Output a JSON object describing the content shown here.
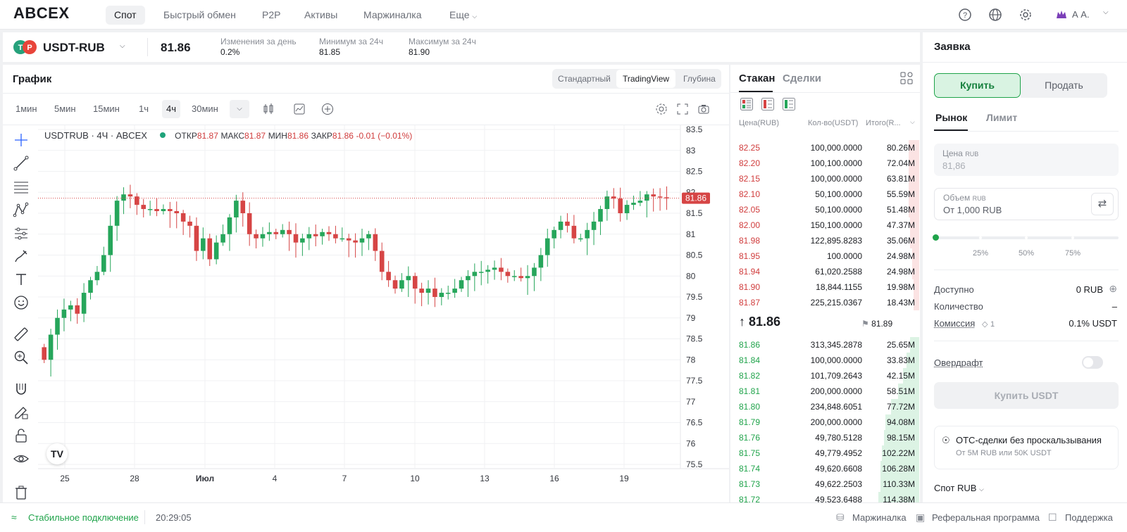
{
  "brand": "ABCEX",
  "nav": {
    "items": [
      {
        "label": "Спот",
        "active": true
      },
      {
        "label": "Быстрый обмен"
      },
      {
        "label": "P2P"
      },
      {
        "label": "Активы"
      },
      {
        "label": "Маржиналка"
      },
      {
        "label": "Еще"
      }
    ],
    "user": "А А."
  },
  "ticker": {
    "pair": "USDT-RUB",
    "price": "81.86",
    "change_label": "Изменения за день",
    "change_value": "0.2%",
    "min_label": "Минимум за 24ч",
    "min_value": "81.85",
    "max_label": "Максимум за 24ч",
    "max_value": "81.90"
  },
  "chart_panel": {
    "title": "График",
    "view_tabs": [
      {
        "label": "Стандартный"
      },
      {
        "label": "TradingView",
        "active": true
      },
      {
        "label": "Глубина"
      }
    ],
    "timeframes": [
      {
        "label": "1мин"
      },
      {
        "label": "5мин"
      },
      {
        "label": "15мин"
      },
      {
        "label": "1ч"
      },
      {
        "label": "4ч",
        "active": true
      },
      {
        "label": "30мин"
      }
    ],
    "legend": {
      "symbol": "USDTRUB · 4Ч · ABCEX",
      "open_label": "ОТКР",
      "open": "81.87",
      "high_label": "МАКС",
      "high": "81.87",
      "low_label": "МИН",
      "low": "81.86",
      "close_label": "ЗАКР",
      "close": "81.86",
      "change": "-0.01 (−0.01%)"
    },
    "last_price_tag": "81.86",
    "colors": {
      "up": "#26a65b",
      "down": "#d64545"
    }
  },
  "chart_data": {
    "type": "candlestick",
    "y_ticks": [
      "83.5",
      "83",
      "82.5",
      "82",
      "81.5",
      "81",
      "80.5",
      "80",
      "79.5",
      "79",
      "78.5",
      "78",
      "77.5",
      "77",
      "76.5",
      "76",
      "75.5"
    ],
    "x_ticks": [
      "25",
      "28",
      "Июл",
      "4",
      "7",
      "10",
      "13",
      "16",
      "19"
    ],
    "ylim": [
      75.5,
      83.5
    ],
    "last_price": 81.86,
    "close_path": [
      78.0,
      78.6,
      79.0,
      79.2,
      79.3,
      79.1,
      79.6,
      79.9,
      80.1,
      80.5,
      81.2,
      81.8,
      81.95,
      81.9,
      81.7,
      81.6,
      81.6,
      81.55,
      81.6,
      81.55,
      81.5,
      81.3,
      81.2,
      80.6,
      80.9,
      80.4,
      80.8,
      81.0,
      81.4,
      81.8,
      81.5,
      81.0,
      80.9,
      81.0,
      81.05,
      81.0,
      81.1,
      81.0,
      80.8,
      80.9,
      81.0,
      80.95,
      81.05,
      81.0,
      80.9,
      80.9,
      80.85,
      80.8,
      80.9,
      81.0,
      80.6,
      80.1,
      79.9,
      79.7,
      79.9,
      80.0,
      79.7,
      79.6,
      79.7,
      79.5,
      79.6,
      79.6,
      79.7,
      79.9,
      80.0,
      80.1,
      80.1,
      80.15,
      80.2,
      80.1,
      80.0,
      80.0,
      79.95,
      80.0,
      80.2,
      80.5,
      80.9,
      81.1,
      81.3,
      81.2,
      80.9,
      80.9,
      81.1,
      81.3,
      81.6,
      81.9,
      81.85,
      81.5,
      81.7,
      81.75,
      81.8,
      81.95,
      81.9,
      81.88,
      81.86
    ]
  },
  "orderbook": {
    "tabs": [
      {
        "label": "Стакан",
        "active": true
      },
      {
        "label": "Сделки"
      }
    ],
    "col_price": "Цена(RUB)",
    "col_qty": "Кол-во(USDT)",
    "col_total": "Итого(R...",
    "asks": [
      {
        "price": "82.25",
        "qty": "100,000.0000",
        "total": "80.26M",
        "depth": 0.06
      },
      {
        "price": "82.20",
        "qty": "100,100.0000",
        "total": "72.04M",
        "depth": 0.06
      },
      {
        "price": "82.15",
        "qty": "100,000.0000",
        "total": "63.81M",
        "depth": 0.06
      },
      {
        "price": "82.10",
        "qty": "50,100.0000",
        "total": "55.59M",
        "depth": 0.06
      },
      {
        "price": "82.05",
        "qty": "50,100.0000",
        "total": "51.48M",
        "depth": 0.06
      },
      {
        "price": "82.00",
        "qty": "150,100.0000",
        "total": "47.37M",
        "depth": 0.05
      },
      {
        "price": "81.98",
        "qty": "122,895.8283",
        "total": "35.06M",
        "depth": 0.05
      },
      {
        "price": "81.95",
        "qty": "100.0000",
        "total": "24.98M",
        "depth": 0.04
      },
      {
        "price": "81.94",
        "qty": "61,020.2588",
        "total": "24.98M",
        "depth": 0.04
      },
      {
        "price": "81.90",
        "qty": "18,844.1155",
        "total": "19.98M",
        "depth": 0.03
      },
      {
        "price": "81.87",
        "qty": "225,215.0367",
        "total": "18.43M",
        "depth": 0.03
      }
    ],
    "mid_price": "81.86",
    "mark_price": "81.89",
    "bids": [
      {
        "price": "81.86",
        "qty": "313,345.2878",
        "total": "25.65M",
        "depth": 0.05
      },
      {
        "price": "81.84",
        "qty": "100,000.0000",
        "total": "33.83M",
        "depth": 0.07
      },
      {
        "price": "81.82",
        "qty": "101,709.2643",
        "total": "42.15M",
        "depth": 0.09
      },
      {
        "price": "81.81",
        "qty": "200,000.0000",
        "total": "58.51M",
        "depth": 0.12
      },
      {
        "price": "81.80",
        "qty": "234,848.6051",
        "total": "77.72M",
        "depth": 0.16
      },
      {
        "price": "81.79",
        "qty": "200,000.0000",
        "total": "94.08M",
        "depth": 0.19
      },
      {
        "price": "81.76",
        "qty": "49,780.5128",
        "total": "98.15M",
        "depth": 0.2
      },
      {
        "price": "81.75",
        "qty": "49,779.4952",
        "total": "102.22M",
        "depth": 0.21
      },
      {
        "price": "81.74",
        "qty": "49,620.6608",
        "total": "106.28M",
        "depth": 0.22
      },
      {
        "price": "81.73",
        "qty": "49,622.2503",
        "total": "110.33M",
        "depth": 0.22
      },
      {
        "price": "81.72",
        "qty": "49,523.6488",
        "total": "114.38M",
        "depth": 0.23
      }
    ]
  },
  "order": {
    "title": "Заявка",
    "buy_label": "Купить",
    "sell_label": "Продать",
    "type_tabs": [
      {
        "label": "Рынок",
        "active": true
      },
      {
        "label": "Лимит"
      }
    ],
    "price_label": "Цена",
    "price_unit": "RUB",
    "price_value": "81,86",
    "volume_label": "Объем",
    "volume_unit": "RUB",
    "volume_placeholder": "От 1,000 RUB",
    "slider_marks": [
      "25%",
      "50%",
      "75%"
    ],
    "slider_value": 0,
    "available_label": "Доступно",
    "available_value": "0 RUB",
    "quantity_label": "Количество",
    "quantity_value": "–",
    "fee_label": "Комиссия",
    "fee_badge": "1",
    "fee_value": "0.1% USDT",
    "overdraft_label": "Овердрафт",
    "submit_label": "Купить USDT",
    "otc_title": "OTC-сделки без проскальзывания",
    "otc_sub": "От 5M RUB или 50K USDT",
    "market_select": "Спот RUB"
  },
  "status": {
    "connection": "Стабильное подключение",
    "time": "20:29:05",
    "links": [
      "Маржиналка",
      "Реферальная программа",
      "Поддержка"
    ]
  }
}
